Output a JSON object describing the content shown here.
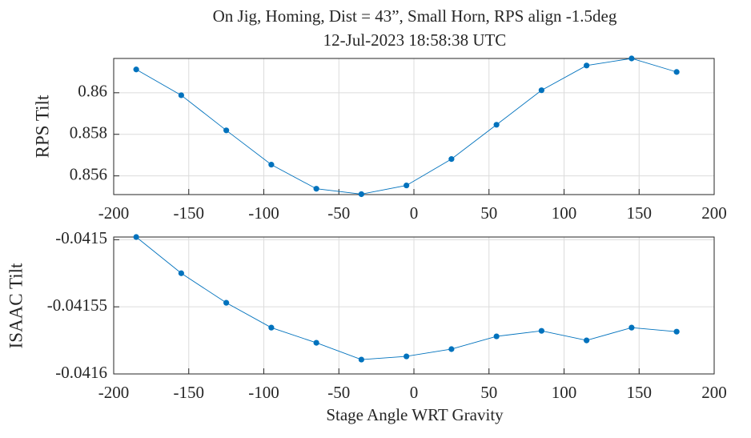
{
  "chart_data": [
    {
      "type": "line",
      "title": "On Jig, Homing, Dist = 43”, Small Horn, RPS align -1.5deg",
      "subtitle": "12-Jul-2023 18:58:38 UTC",
      "ylabel": "RPS Tilt",
      "x": [
        -185,
        -155,
        -125,
        -95,
        -65,
        -35,
        -5,
        25,
        55,
        85,
        115,
        145,
        175
      ],
      "values": [
        0.86112,
        0.85988,
        0.85819,
        0.85654,
        0.85538,
        0.85512,
        0.85554,
        0.85681,
        0.85846,
        0.86012,
        0.86131,
        0.86165,
        0.861
      ],
      "color": "#0072bd",
      "xlim": [
        -200,
        200
      ],
      "xticks": [
        -200,
        -150,
        -100,
        -50,
        0,
        50,
        100,
        150,
        200
      ],
      "ylim": [
        0.8551,
        0.86165
      ],
      "yticks": [
        0.856,
        0.858,
        0.86
      ],
      "grid": true
    },
    {
      "type": "line",
      "xlabel": "Stage Angle WRT Gravity",
      "ylabel": "ISAAC Tilt",
      "x": [
        -185,
        -155,
        -125,
        -95,
        -65,
        -35,
        -5,
        25,
        55,
        85,
        115,
        145,
        175
      ],
      "values": [
        -0.041498,
        -0.041525,
        -0.041547,
        -0.0415655,
        -0.0415768,
        -0.0415893,
        -0.0415869,
        -0.0415815,
        -0.041572,
        -0.0415679,
        -0.041575,
        -0.0415655,
        -0.0415685
      ],
      "color": "#0072bd",
      "xlim": [
        -200,
        200
      ],
      "xticks": [
        -200,
        -150,
        -100,
        -50,
        0,
        50,
        100,
        150,
        200
      ],
      "ylim": [
        -0.0416,
        -0.041498
      ],
      "yticks": [
        -0.0416,
        -0.04155,
        -0.0415
      ],
      "grid": true
    }
  ]
}
